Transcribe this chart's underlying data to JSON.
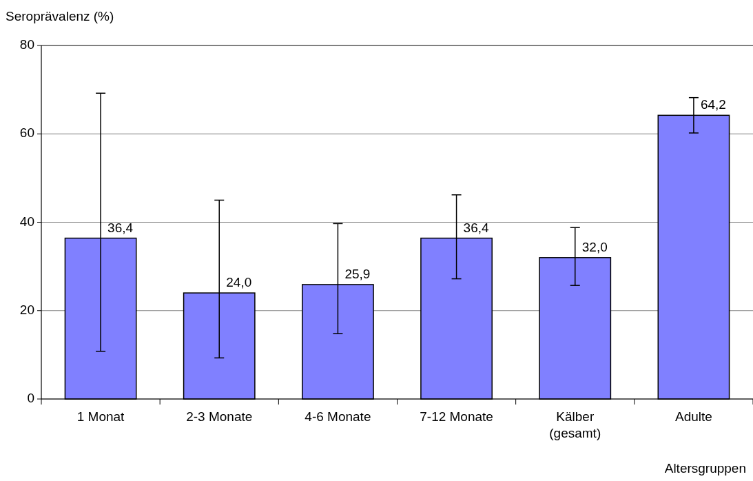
{
  "chart_data": {
    "type": "bar",
    "ylabel": "Seroprävalenz (%)",
    "xlabel": "Altersgruppen",
    "categories": [
      "1 Monat",
      "2-3 Monate",
      "4-6 Monate",
      "7-12 Monate",
      "Kälber\n(gesamt)",
      "Adulte"
    ],
    "values": [
      36.4,
      24.0,
      25.9,
      36.4,
      32.0,
      64.2
    ],
    "value_labels": [
      "36,4",
      "24,0",
      "25,9",
      "36,4",
      "32,0",
      "64,2"
    ],
    "errors": [
      [
        10.8,
        69.2
      ],
      [
        9.3,
        45.0
      ],
      [
        14.8,
        39.7
      ],
      [
        27.2,
        46.2
      ],
      [
        25.7,
        38.8
      ],
      [
        60.2,
        68.2
      ]
    ],
    "color": "#8080ff",
    "ylim": [
      0,
      80
    ],
    "yticks": [
      0,
      20,
      40,
      60,
      80
    ],
    "grid": "y"
  }
}
